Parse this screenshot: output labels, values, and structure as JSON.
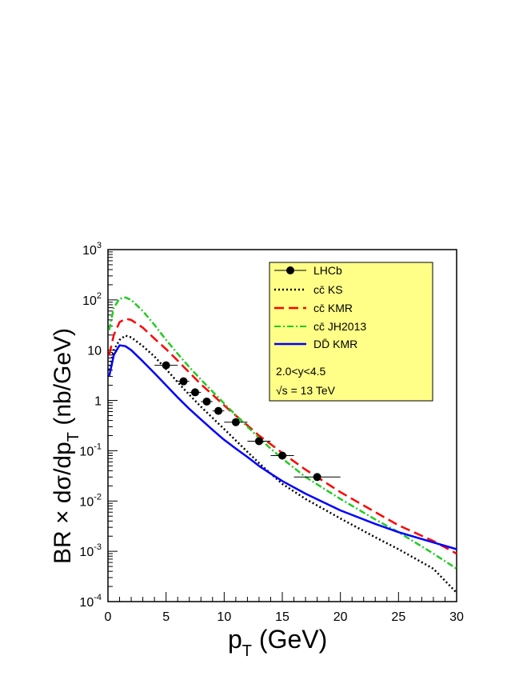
{
  "chart_data": {
    "type": "line",
    "title": "",
    "xlabel": "p",
    "xlabel_sub": "T",
    "xlabel_rest": " (GeV)",
    "ylabel": "BR × dσ/dp",
    "ylabel_sub": "T",
    "ylabel_rest": " (nb/GeV)",
    "xlim": [
      0,
      30
    ],
    "ylim": [
      0.0001,
      1000
    ],
    "yscale": "log",
    "x_ticks": [
      "0",
      "5",
      "10",
      "15",
      "20",
      "25",
      "30"
    ],
    "y_ticks": [
      {
        "base": "10",
        "exp": "-4",
        "value": 0.0001
      },
      {
        "base": "10",
        "exp": "-3",
        "value": 0.001
      },
      {
        "base": "10",
        "exp": "-2",
        "value": 0.01
      },
      {
        "base": "10",
        "exp": "-1",
        "value": 0.1
      },
      {
        "base": "1",
        "exp": "",
        "value": 1
      },
      {
        "base": "10",
        "exp": "",
        "value": 10
      },
      {
        "base": "10",
        "exp": "2",
        "value": 100
      },
      {
        "base": "10",
        "exp": "3",
        "value": 1000
      }
    ],
    "series": [
      {
        "name": "cc̄ KS",
        "color": "#000000",
        "style": "dotted",
        "x": [
          0.1,
          0.5,
          1,
          1.5,
          2,
          3,
          4,
          5,
          6,
          7,
          8,
          9,
          10,
          11,
          12,
          13,
          14,
          15,
          17,
          20,
          23,
          25,
          28,
          30
        ],
        "y": [
          4,
          10,
          16,
          19.5,
          18,
          12,
          7.5,
          4.2,
          2.3,
          1.3,
          0.75,
          0.45,
          0.27,
          0.16,
          0.095,
          0.057,
          0.035,
          0.022,
          0.011,
          0.0045,
          0.0019,
          0.0011,
          0.00045,
          0.00015
        ]
      },
      {
        "name": "cc̄ KMR",
        "color": "#ff0000",
        "style": "dashed",
        "x": [
          0.1,
          0.5,
          1,
          1.5,
          2,
          3,
          4,
          5,
          6,
          7,
          8,
          9,
          10,
          11,
          12,
          13,
          14,
          15,
          17,
          20,
          23,
          25,
          28,
          30
        ],
        "y": [
          8,
          20,
          36,
          42,
          40,
          28,
          17,
          10.5,
          6.2,
          3.6,
          2.1,
          1.3,
          0.8,
          0.5,
          0.32,
          0.2,
          0.135,
          0.09,
          0.042,
          0.015,
          0.006,
          0.0033,
          0.0016,
          0.0009
        ]
      },
      {
        "name": "cc̄ JH2013",
        "color": "#22cc22",
        "style": "dashdot",
        "x": [
          0.1,
          0.5,
          1,
          1.5,
          2,
          3,
          4,
          5,
          6,
          7,
          8,
          9,
          10,
          11,
          12,
          13,
          14,
          15,
          17,
          20,
          23,
          25,
          28,
          30
        ],
        "y": [
          25,
          70,
          105,
          112,
          100,
          60,
          32,
          16,
          8.5,
          4.6,
          2.6,
          1.5,
          0.87,
          0.51,
          0.3,
          0.18,
          0.11,
          0.07,
          0.03,
          0.011,
          0.0043,
          0.0024,
          0.0009,
          0.00045
        ]
      },
      {
        "name": "DD̄ KMR",
        "color": "#0000ff",
        "style": "solid",
        "x": [
          0.1,
          0.5,
          1,
          1.5,
          2,
          3,
          4,
          5,
          6,
          7,
          8,
          9,
          10,
          11,
          12,
          13,
          14,
          15,
          17,
          20,
          23,
          25,
          28,
          30
        ],
        "y": [
          3,
          8,
          12.5,
          12,
          10,
          6,
          3.5,
          2,
          1.15,
          0.68,
          0.42,
          0.26,
          0.165,
          0.11,
          0.075,
          0.05,
          0.035,
          0.025,
          0.014,
          0.0065,
          0.0035,
          0.0024,
          0.0015,
          0.0011
        ]
      }
    ],
    "data_points": {
      "name": "LHCb",
      "color": "#000000",
      "x": [
        5,
        6.5,
        7.5,
        8.5,
        9.5,
        11,
        13,
        15,
        18
      ],
      "xerr": [
        1,
        0.5,
        0.5,
        0.5,
        0.5,
        1,
        1,
        1,
        2
      ],
      "y": [
        5,
        2.4,
        1.45,
        0.95,
        0.62,
        0.37,
        0.155,
        0.08,
        0.03
      ]
    },
    "legend": {
      "placement": "top-right",
      "background": "#ffff88",
      "entries": [
        "LHCb",
        "cc̄ KS",
        "cc̄ KMR",
        "cc̄ JH2013",
        "DD̄ KMR"
      ],
      "annotations": [
        "2.0<y<4.5",
        "√s = 13 TeV"
      ]
    }
  }
}
